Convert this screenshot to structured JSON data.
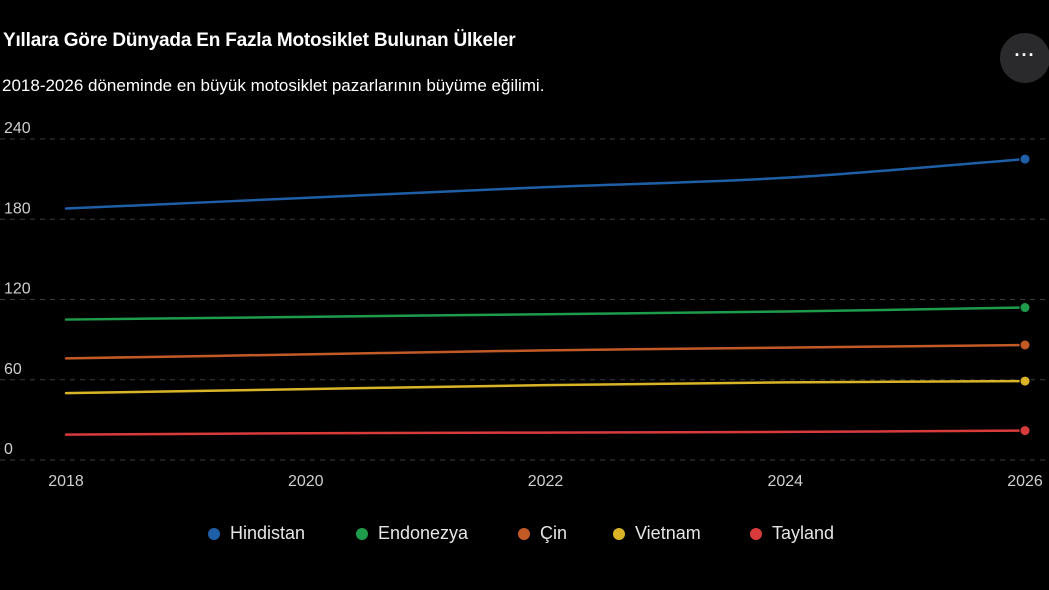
{
  "header": {
    "title": "Yıllara Göre Dünyada En Fazla Motosiklet Bulunan Ülkeler",
    "subtitle": "2018-2026 döneminde en büyük motosiklet pazarlarının büyüme eğilimi.",
    "menu_label": "···",
    "menu_icon": "more-horizontal-icon"
  },
  "chart_data": {
    "type": "line",
    "x": [
      2018,
      2020,
      2022,
      2024,
      2026
    ],
    "x_tick_labels": [
      "2018",
      "2020",
      "2022",
      "2024",
      "2026"
    ],
    "y_tick_labels": [
      "0",
      "60",
      "120",
      "180",
      "240"
    ],
    "xlim": [
      2018,
      2026
    ],
    "ylim": [
      0,
      240
    ],
    "grid": true,
    "legend_position": "bottom",
    "series": [
      {
        "name": "Hindistan",
        "color": "#1f5fa8",
        "values": [
          188,
          196,
          204,
          211,
          225
        ]
      },
      {
        "name": "Endonezya",
        "color": "#1e9b4b",
        "values": [
          105,
          107,
          109,
          111,
          114
        ]
      },
      {
        "name": "Çin",
        "color": "#c25a26",
        "values": [
          76,
          79,
          82,
          84,
          86
        ]
      },
      {
        "name": "Vietnam",
        "color": "#d9b426",
        "values": [
          50,
          53,
          56,
          58,
          59
        ]
      },
      {
        "name": "Tayland",
        "color": "#d93b3b",
        "values": [
          19,
          20,
          20.5,
          21,
          22
        ]
      }
    ]
  }
}
